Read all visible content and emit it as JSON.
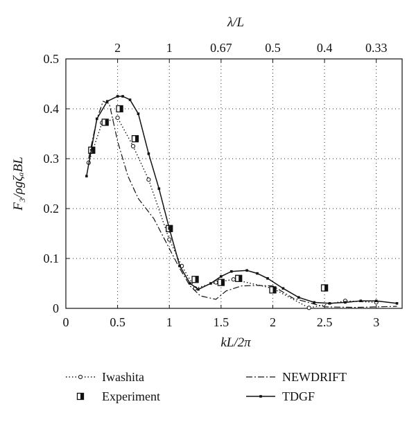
{
  "chart_data": {
    "type": "line",
    "xlabel": "kL/2π",
    "ylabel": "F₃/ρgζₐBL",
    "top_xlabel": "λ/L",
    "xlim": [
      0,
      3.25
    ],
    "ylim": [
      0,
      0.5
    ],
    "x_ticks": [
      0,
      0.5,
      1,
      1.5,
      2,
      2.5,
      3
    ],
    "x_tick_labels": [
      "0",
      "0.5",
      "1",
      "1.5",
      "2",
      "2.5",
      "3"
    ],
    "y_ticks": [
      0,
      0.1,
      0.2,
      0.3,
      0.4,
      0.5
    ],
    "y_tick_labels": [
      "0",
      "0.1",
      "0.2",
      "0.3",
      "0.4",
      "0.5"
    ],
    "top_ticks": [
      {
        "kL": 0.5,
        "label": "2"
      },
      {
        "kL": 1.0,
        "label": "1"
      },
      {
        "kL": 1.5,
        "label": "0.67"
      },
      {
        "kL": 2.0,
        "label": "0.5"
      },
      {
        "kL": 2.5,
        "label": "0.4"
      },
      {
        "kL": 3.0,
        "label": "0.33"
      }
    ],
    "grid": true,
    "legend_position": "bottom",
    "series": [
      {
        "name": "Iwashita",
        "style": "dotted-circle",
        "x": [
          0.22,
          0.35,
          0.5,
          0.65,
          0.8,
          1.0,
          1.12,
          1.25,
          1.45,
          1.62,
          2.0,
          2.35,
          2.7,
          3.0
        ],
        "y": [
          0.292,
          0.372,
          0.382,
          0.325,
          0.258,
          0.138,
          0.085,
          0.04,
          0.052,
          0.058,
          0.04,
          0.001,
          0.015,
          0.012
        ]
      },
      {
        "name": "Experiment",
        "style": "half-filled-square",
        "x": [
          0.25,
          0.38,
          0.52,
          0.67,
          1.0,
          1.25,
          1.5,
          1.67,
          2.0,
          2.5
        ],
        "y": [
          0.317,
          0.373,
          0.4,
          0.34,
          0.16,
          0.058,
          0.052,
          0.06,
          0.037,
          0.041
        ]
      },
      {
        "name": "NEWDRIFT",
        "style": "dash-dot",
        "x": [
          0.22,
          0.3,
          0.36,
          0.42,
          0.5,
          0.6,
          0.7,
          0.85,
          1.0,
          1.1,
          1.2,
          1.3,
          1.45,
          1.55,
          1.7,
          1.85,
          2.0,
          2.2,
          2.5,
          2.8,
          3.2
        ],
        "y": [
          0.3,
          0.38,
          0.415,
          0.41,
          0.335,
          0.265,
          0.22,
          0.18,
          0.12,
          0.08,
          0.045,
          0.025,
          0.018,
          0.035,
          0.045,
          0.046,
          0.045,
          0.02,
          0.003,
          0.002,
          0.004
        ]
      },
      {
        "name": "TDGF",
        "style": "solid-small-square",
        "x": [
          0.2,
          0.3,
          0.4,
          0.5,
          0.55,
          0.62,
          0.7,
          0.8,
          0.9,
          1.0,
          1.1,
          1.2,
          1.28,
          1.4,
          1.5,
          1.6,
          1.75,
          1.85,
          1.95,
          2.1,
          2.25,
          2.4,
          2.55,
          2.7,
          2.85,
          3.0,
          3.2
        ],
        "y": [
          0.265,
          0.38,
          0.415,
          0.425,
          0.425,
          0.418,
          0.39,
          0.31,
          0.24,
          0.16,
          0.085,
          0.05,
          0.038,
          0.05,
          0.064,
          0.074,
          0.076,
          0.07,
          0.06,
          0.04,
          0.022,
          0.012,
          0.01,
          0.012,
          0.015,
          0.015,
          0.01
        ]
      }
    ]
  }
}
